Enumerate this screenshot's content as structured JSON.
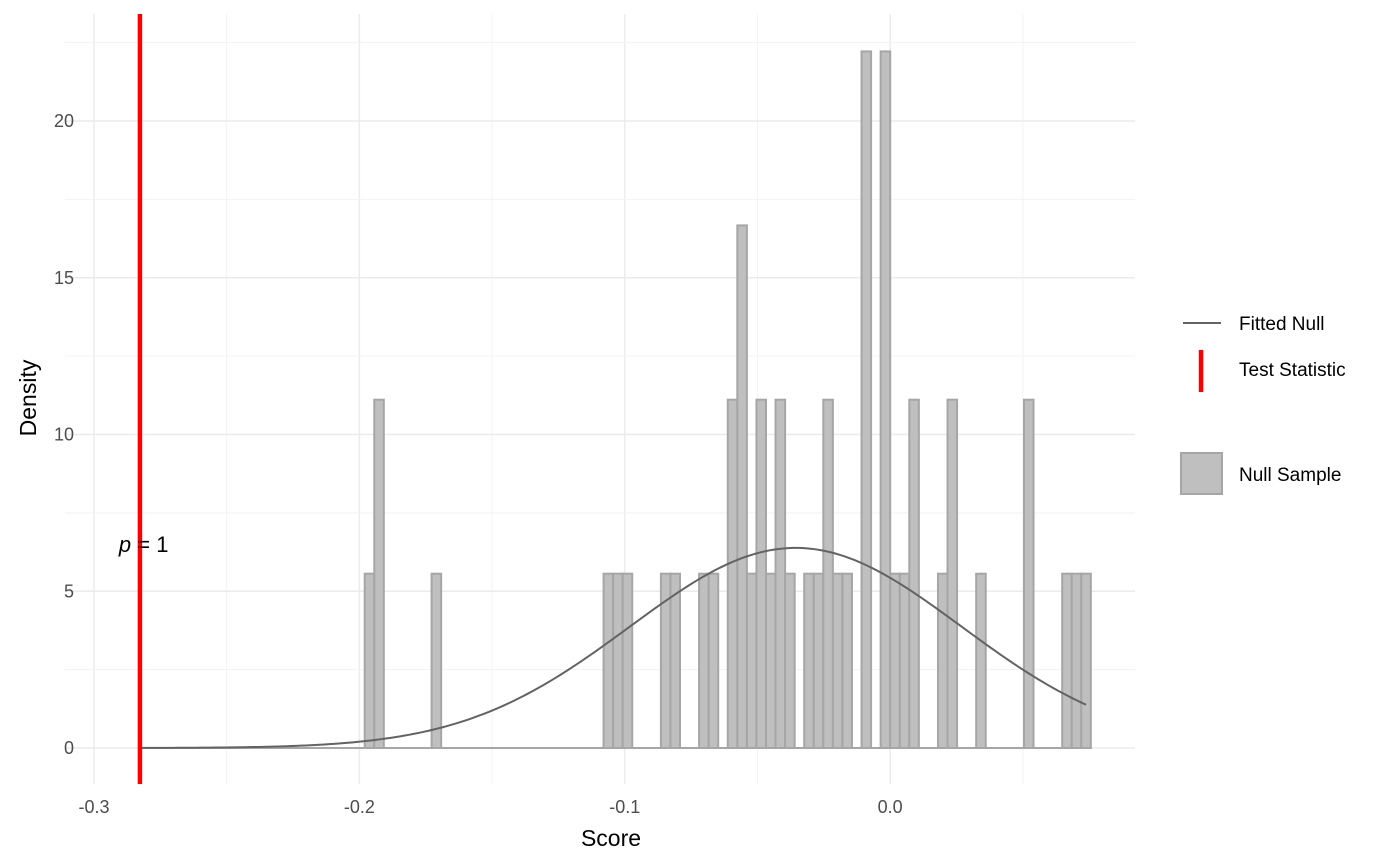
{
  "chart_data": {
    "type": "histogram",
    "title": "",
    "xlabel": "Score",
    "ylabel": "Density",
    "xlim": [
      -0.3,
      0.09
    ],
    "ylim": [
      -1.3,
      23.5
    ],
    "x_ticks": [
      -0.3,
      -0.2,
      -0.1,
      0.0
    ],
    "x_tick_labels": [
      "-0.3",
      "-0.2",
      "-0.1",
      "0.0"
    ],
    "y_ticks": [
      0,
      5,
      10,
      15,
      20
    ],
    "y_tick_labels": [
      "0",
      "5",
      "10",
      "15",
      "20"
    ],
    "grid": true,
    "bin_width": 0.0036,
    "histogram": {
      "name": "Null Sample",
      "fill": "#bfbfbf",
      "stroke": "#a6a6a6",
      "bins": [
        {
          "x": -0.1962,
          "y": 5.56
        },
        {
          "x": -0.1926,
          "y": 11.11
        },
        {
          "x": -0.171,
          "y": 5.56
        },
        {
          "x": -0.1062,
          "y": 5.56
        },
        {
          "x": -0.1026,
          "y": 5.56
        },
        {
          "x": -0.099,
          "y": 5.56
        },
        {
          "x": -0.0846,
          "y": 5.56
        },
        {
          "x": -0.081,
          "y": 5.56
        },
        {
          "x": -0.0702,
          "y": 5.56
        },
        {
          "x": -0.0666,
          "y": 5.56
        },
        {
          "x": -0.0594,
          "y": 11.11
        },
        {
          "x": -0.0558,
          "y": 16.67
        },
        {
          "x": -0.0522,
          "y": 5.56
        },
        {
          "x": -0.0486,
          "y": 11.11
        },
        {
          "x": -0.045,
          "y": 5.56
        },
        {
          "x": -0.0414,
          "y": 11.11
        },
        {
          "x": -0.0378,
          "y": 5.56
        },
        {
          "x": -0.0306,
          "y": 5.56
        },
        {
          "x": -0.027,
          "y": 5.56
        },
        {
          "x": -0.0234,
          "y": 11.11
        },
        {
          "x": -0.0198,
          "y": 5.56
        },
        {
          "x": -0.0162,
          "y": 5.56
        },
        {
          "x": -0.009,
          "y": 22.22
        },
        {
          "x": -0.0018,
          "y": 22.22
        },
        {
          "x": 0.0018,
          "y": 5.56
        },
        {
          "x": 0.0054,
          "y": 5.56
        },
        {
          "x": 0.009,
          "y": 11.11
        },
        {
          "x": 0.0198,
          "y": 5.56
        },
        {
          "x": 0.0234,
          "y": 11.11
        },
        {
          "x": 0.0342,
          "y": 5.56
        },
        {
          "x": 0.0522,
          "y": 11.11
        },
        {
          "x": 0.0666,
          "y": 5.56
        },
        {
          "x": 0.0702,
          "y": 5.56
        },
        {
          "x": 0.0738,
          "y": 5.56
        }
      ],
      "baseline_range": [
        -0.2827,
        0.0756
      ]
    },
    "fitted_null": {
      "name": "Fitted Null",
      "color": "#636363",
      "mean": -0.0356,
      "sd": 0.0625,
      "x_range": [
        -0.2827,
        0.0738
      ]
    },
    "test_statistic": {
      "name": "Test Statistic",
      "color": "#ff0000",
      "x": -0.2827
    },
    "annotation": {
      "p_symbol": "p",
      "p_rest": " = 1",
      "x": -0.2827,
      "y": 6.5
    },
    "legend": {
      "position": "right",
      "items": [
        {
          "label": "Fitted Null",
          "kind": "line",
          "color": "#636363"
        },
        {
          "label": "Test Statistic",
          "kind": "vline",
          "color": "#ff0000"
        },
        {
          "label": "Null Sample",
          "kind": "box",
          "color": "#bfbfbf"
        }
      ]
    }
  }
}
